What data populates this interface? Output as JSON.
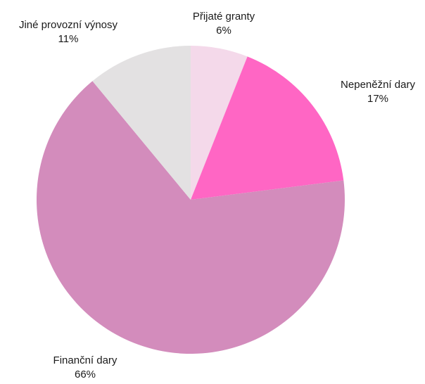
{
  "chart_data": {
    "type": "pie",
    "title": "",
    "slices": [
      {
        "label": "Přijaté granty",
        "value": 6,
        "value_label": "6%",
        "color": "#f4d9ea"
      },
      {
        "label": "Nepeněžní dary",
        "value": 17,
        "value_label": "17%",
        "color": "#ff66c4"
      },
      {
        "label": "Finanční dary",
        "value": 66,
        "value_label": "66%",
        "color": "#d38cbc"
      },
      {
        "label": "Jiné provozní výnosy",
        "value": 11,
        "value_label": "11%",
        "color": "#e3e1e2"
      }
    ],
    "start_angle_deg": 0,
    "direction": "clockwise",
    "legend": "none",
    "data_labels": "outside"
  }
}
